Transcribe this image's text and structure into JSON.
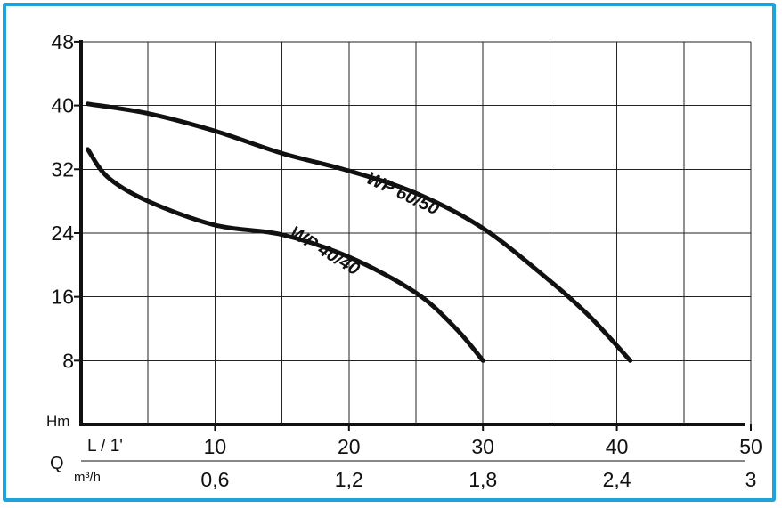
{
  "frame_color": "#1fa3d8",
  "chart_data": {
    "type": "line",
    "y_unit_label": "Hm",
    "y_ticks": [
      8,
      16,
      24,
      32,
      40,
      48
    ],
    "ylim": [
      0,
      48
    ],
    "x_axis_prefix": "Q",
    "x_primary": {
      "unit": "L / 1'",
      "ticks": [
        "10",
        "20",
        "30",
        "40",
        "50"
      ],
      "values": [
        10,
        20,
        30,
        40,
        50
      ]
    },
    "x_secondary": {
      "unit": "m³/h",
      "ticks": [
        "0,6",
        "1,2",
        "1,8",
        "2,4",
        "3"
      ]
    },
    "xlim": [
      0,
      50
    ],
    "grid": true,
    "series": [
      {
        "name": "WP 60/50",
        "x": [
          0.5,
          5,
          10,
          15,
          20,
          25,
          30,
          35,
          38,
          41
        ],
        "y": [
          40.2,
          39.0,
          36.8,
          34.0,
          31.8,
          29.0,
          24.6,
          18.0,
          13.5,
          8.0
        ]
      },
      {
        "name": "WP 40/40",
        "x": [
          0.5,
          2,
          5,
          10,
          15,
          20,
          25,
          28,
          30
        ],
        "y": [
          34.5,
          31.0,
          28.0,
          25.0,
          23.8,
          21.0,
          16.5,
          12.0,
          8.0
        ]
      }
    ]
  }
}
